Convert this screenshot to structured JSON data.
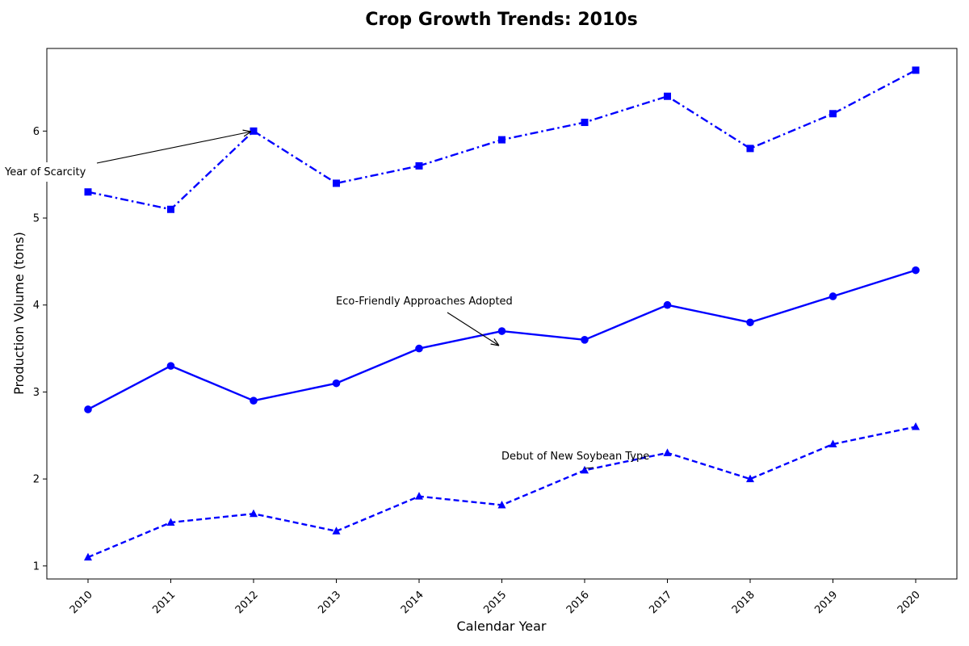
{
  "chart_data": {
    "type": "line",
    "title": "Crop Growth Trends: 2010s",
    "xlabel": "Calendar Year",
    "ylabel": "Production Volume (tons)",
    "categories": [
      "2010",
      "2011",
      "2012",
      "2013",
      "2014",
      "2015",
      "2016",
      "2017",
      "2018",
      "2019",
      "2020"
    ],
    "x_ticks": [
      "2010",
      "2011",
      "2012",
      "2013",
      "2014",
      "2015",
      "2016",
      "2017",
      "2018",
      "2019",
      "2020"
    ],
    "y_ticks": [
      "1",
      "2",
      "3",
      "4",
      "5",
      "6"
    ],
    "ylim": [
      0.85,
      6.95
    ],
    "grid": false,
    "series": [
      {
        "style": "dashdot",
        "marker": "square",
        "color": "#0000ff",
        "values": [
          5.3,
          5.1,
          6.0,
          5.4,
          5.6,
          5.9,
          6.1,
          6.4,
          5.8,
          6.2,
          6.7
        ]
      },
      {
        "style": "solid",
        "marker": "circle",
        "color": "#0000ff",
        "values": [
          2.8,
          3.3,
          2.9,
          3.1,
          3.5,
          3.7,
          3.6,
          4.0,
          3.8,
          4.1,
          4.4
        ]
      },
      {
        "style": "dashed",
        "marker": "triangle",
        "color": "#0000ff",
        "values": [
          1.1,
          1.5,
          1.6,
          1.4,
          1.8,
          1.7,
          2.1,
          2.3,
          2.0,
          2.4,
          2.6
        ]
      }
    ],
    "annotations": [
      {
        "text": "Year of Scarcity",
        "x": "2012",
        "y": 6.0
      },
      {
        "text": "Eco-Friendly Approaches Adopted",
        "x": "2015",
        "y": 3.5
      },
      {
        "text": "Debut of New Soybean Type",
        "x": "2016",
        "y": 2.1
      }
    ]
  }
}
